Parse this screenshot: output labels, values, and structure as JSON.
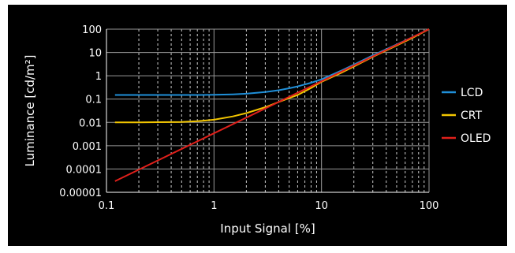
{
  "chart_data": {
    "type": "line",
    "title": "",
    "xlabel": "Input Signal [%]",
    "ylabel": "Luminance [cd/m²]",
    "x_scale": "log",
    "y_scale": "log",
    "xlim": [
      0.1,
      100
    ],
    "ylim": [
      1e-05,
      100
    ],
    "x_ticks": [
      "0.1",
      "1",
      "10",
      "100"
    ],
    "y_ticks": [
      "100",
      "10",
      "1",
      "0.1",
      "0.01",
      "0.001",
      "0.0001",
      "0.00001"
    ],
    "grid": true,
    "legend_position": "right",
    "background": "#000000",
    "series": [
      {
        "name": "LCD",
        "color": "#1f8fd8",
        "x": [
          0.12,
          0.2,
          0.3,
          0.5,
          0.7,
          1,
          1.5,
          2,
          3,
          4,
          5,
          6,
          8,
          10,
          15,
          20,
          30,
          50,
          70,
          100
        ],
        "y": [
          0.15,
          0.15,
          0.15,
          0.15,
          0.15,
          0.152,
          0.16,
          0.17,
          0.2,
          0.24,
          0.29,
          0.35,
          0.5,
          0.7,
          1.6,
          3,
          7.5,
          22,
          45,
          100
        ]
      },
      {
        "name": "CRT",
        "color": "#f2c500",
        "x": [
          0.12,
          0.2,
          0.3,
          0.5,
          0.7,
          1,
          1.5,
          2,
          3,
          4,
          5,
          6,
          8,
          10,
          15,
          20,
          30,
          50,
          70,
          100
        ],
        "y": [
          0.01,
          0.0101,
          0.0102,
          0.0105,
          0.0112,
          0.013,
          0.018,
          0.025,
          0.045,
          0.075,
          0.11,
          0.15,
          0.3,
          0.55,
          1.3,
          2.5,
          6.5,
          20,
          42,
          100
        ]
      },
      {
        "name": "OLED",
        "color": "#e0201b",
        "x": [
          0.12,
          100
        ],
        "y": [
          3e-05,
          100
        ]
      }
    ]
  }
}
